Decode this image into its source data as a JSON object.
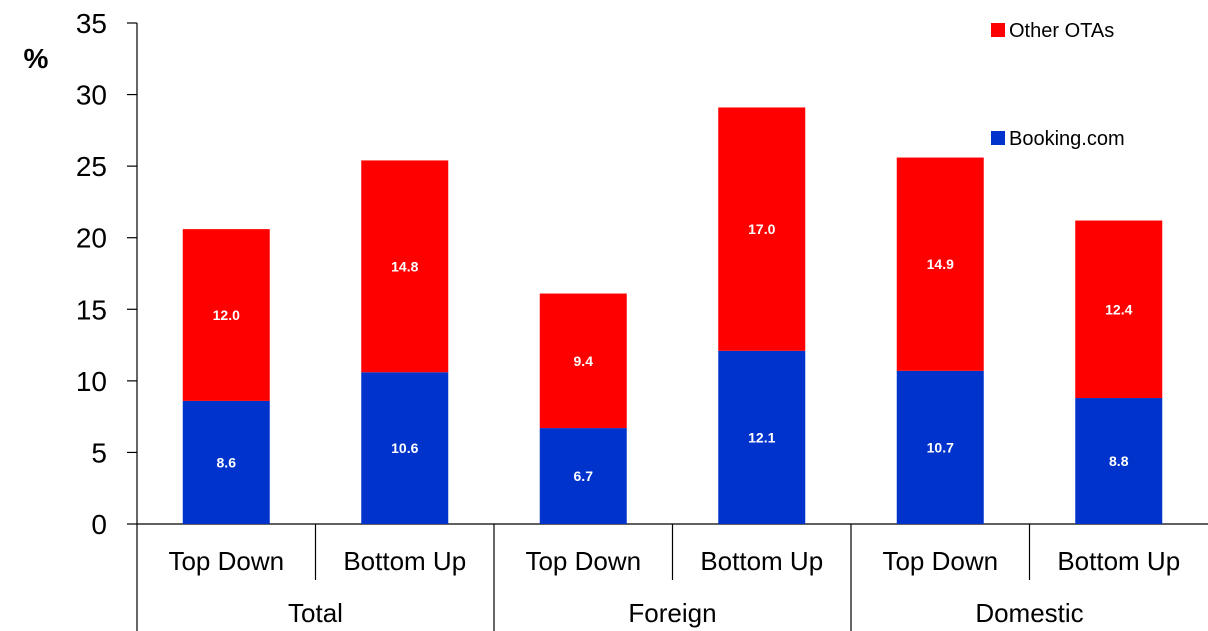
{
  "chart_data": {
    "type": "bar",
    "stacked": true,
    "unit_label": "%",
    "ylim": [
      0,
      35
    ],
    "yticks": [
      0,
      5,
      10,
      15,
      20,
      25,
      30,
      35
    ],
    "grid": false,
    "legend_position": "top-right",
    "categories": [
      "Top Down",
      "Bottom Up",
      "Top Down",
      "Bottom Up",
      "Top Down",
      "Bottom Up"
    ],
    "groups": [
      {
        "label": "Total",
        "span": 2
      },
      {
        "label": "Foreign",
        "span": 2
      },
      {
        "label": "Domestic",
        "span": 2
      }
    ],
    "series": [
      {
        "name": "Booking.com",
        "color": "#0033cc",
        "values": [
          8.6,
          10.6,
          6.7,
          12.1,
          10.7,
          8.8
        ]
      },
      {
        "name": "Other OTAs",
        "color": "#ff0000",
        "values": [
          12.0,
          14.8,
          9.4,
          17.0,
          14.9,
          12.4
        ]
      }
    ],
    "data_labels": [
      [
        "8.6",
        "10.6",
        "6.7",
        "12.1",
        "10.7",
        "8.8"
      ],
      [
        "12.0",
        "14.8",
        "9.4",
        "17.0",
        "14.9",
        "12.4"
      ]
    ]
  }
}
